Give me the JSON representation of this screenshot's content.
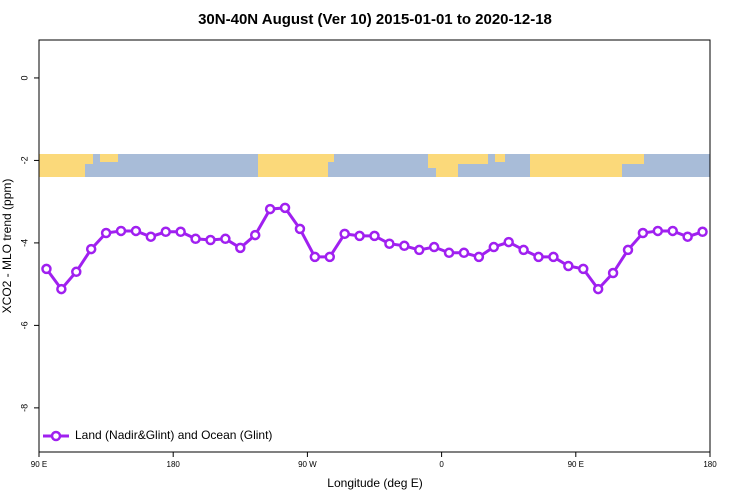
{
  "chart_data": {
    "type": "line",
    "title": "30N-40N August (Ver 10)   2015-01-01 to 2020-12-18",
    "x_label": "Longitude (deg E)",
    "y_label": "XCO2 - MLO trend (ppm)",
    "x": [
      95,
      105,
      115,
      125,
      135,
      145,
      155,
      165,
      175,
      185,
      195,
      205,
      215,
      225,
      235,
      245,
      255,
      265,
      275,
      285,
      295,
      305,
      315,
      325,
      335,
      345,
      355,
      365,
      375,
      385,
      395,
      405,
      415,
      425,
      435,
      445,
      455,
      465,
      475,
      485,
      495,
      505,
      515,
      525,
      535
    ],
    "series": [
      {
        "name": "Land (Nadir&Glint) and Ocean (Glint)",
        "color": "#a020f0",
        "values": [
          -4.63,
          -5.12,
          -4.7,
          -4.15,
          -3.76,
          -3.71,
          -3.71,
          -3.85,
          -3.73,
          -3.73,
          -3.9,
          -3.93,
          -3.9,
          -4.12,
          -3.81,
          -3.18,
          -3.15,
          -3.66,
          -4.34,
          -4.34,
          -3.78,
          -3.83,
          -3.83,
          -4.02,
          -4.07,
          -4.17,
          -4.1,
          -4.24,
          -4.24,
          -4.34,
          -4.1,
          -3.98,
          -4.17,
          -4.34,
          -4.34,
          -4.56,
          -4.63,
          -5.12,
          -4.73,
          -4.17,
          -3.76,
          -3.71,
          -3.71,
          -3.85,
          -3.73
        ]
      }
    ],
    "xlim": [
      90,
      540
    ],
    "xticks": [
      {
        "value": 90,
        "label": "90 E"
      },
      180,
      {
        "value": 270,
        "label": "90 W"
      },
      {
        "value": 360,
        "label": "0"
      },
      {
        "value": 450,
        "label": "90 E"
      },
      {
        "value": 540,
        "label": "180"
      }
    ],
    "ylim": [
      -9.07,
      0.92
    ],
    "yticks": [
      0,
      -2,
      -4,
      -6,
      -8
    ],
    "legend": "bottom-left"
  }
}
